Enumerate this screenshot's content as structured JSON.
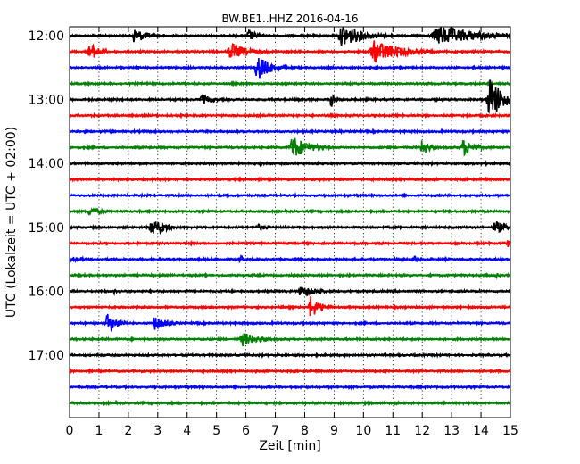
{
  "chart_data": {
    "type": "line",
    "title": "BW.BE1..HHZ 2016-04-16",
    "xlabel": "Zeit  [min]",
    "ylabel": "UTC (Lokalzeit = UTC + 02:00)",
    "xlim": [
      0,
      15
    ],
    "x_ticks": [
      "0",
      "1",
      "2",
      "3",
      "4",
      "5",
      "6",
      "7",
      "8",
      "9",
      "10",
      "11",
      "12",
      "13",
      "14",
      "15"
    ],
    "grid_x": true,
    "grid_y": false,
    "line_colors": [
      "#000000",
      "#ff0000",
      "#0000ff",
      "#008000"
    ],
    "row_start_minutes_utc": 720,
    "row_duration_minutes": 15,
    "y_tick_labels": [
      "12:00",
      "13:00",
      "14:00",
      "15:00",
      "16:00",
      "17:00"
    ],
    "y_tick_row_index": [
      0,
      4,
      8,
      12,
      16,
      20
    ],
    "rows": [
      {
        "start": "12:00",
        "events": [
          [
            2.2,
            9,
            1.2
          ],
          [
            6.1,
            7,
            0.8
          ],
          [
            9.3,
            13,
            2.0
          ],
          [
            12.6,
            11,
            4.0
          ]
        ]
      },
      {
        "start": "12:15",
        "events": [
          [
            0.7,
            11,
            0.8
          ],
          [
            5.5,
            10,
            1.6
          ],
          [
            10.4,
            13,
            2.5
          ]
        ]
      },
      {
        "start": "12:30",
        "events": [
          [
            6.4,
            15,
            1.2
          ]
        ]
      },
      {
        "start": "12:45",
        "events": []
      },
      {
        "start": "13:00",
        "events": [
          [
            4.5,
            6,
            1.0
          ],
          [
            8.9,
            10,
            0.3
          ],
          [
            14.3,
            26,
            1.2
          ]
        ]
      },
      {
        "start": "13:15",
        "events": []
      },
      {
        "start": "13:30",
        "events": []
      },
      {
        "start": "13:45",
        "events": [
          [
            7.6,
            13,
            1.6
          ],
          [
            12.0,
            9,
            0.8
          ],
          [
            13.4,
            10,
            1.0
          ]
        ]
      },
      {
        "start": "14:00",
        "events": [
          [
            6.5,
            3,
            0.4
          ]
        ]
      },
      {
        "start": "14:15",
        "events": []
      },
      {
        "start": "14:30",
        "events": []
      },
      {
        "start": "14:45",
        "events": [
          [
            0.7,
            5,
            1.2
          ]
        ]
      },
      {
        "start": "15:00",
        "events": [
          [
            2.8,
            11,
            1.2
          ],
          [
            6.4,
            4,
            1.2
          ],
          [
            14.5,
            7,
            1.5
          ]
        ]
      },
      {
        "start": "15:15",
        "events": [
          [
            14.9,
            5,
            0.5
          ]
        ]
      },
      {
        "start": "15:30",
        "events": [
          [
            0.1,
            3,
            1.5
          ],
          [
            5.8,
            5,
            0.4
          ],
          [
            11.7,
            4,
            1.0
          ]
        ]
      },
      {
        "start": "15:45",
        "events": [
          [
            14.5,
            3,
            0.3
          ]
        ]
      },
      {
        "start": "16:00",
        "events": [
          [
            1.5,
            4,
            0.2
          ],
          [
            7.9,
            7,
            1.5
          ]
        ]
      },
      {
        "start": "16:15",
        "events": [
          [
            8.2,
            13,
            0.9
          ]
        ]
      },
      {
        "start": "16:30",
        "events": [
          [
            1.3,
            11,
            1.0
          ],
          [
            2.9,
            8,
            1.2
          ]
        ]
      },
      {
        "start": "16:45",
        "events": [
          [
            5.9,
            8,
            1.6
          ]
        ]
      },
      {
        "start": "17:00",
        "events": []
      },
      {
        "start": "17:15",
        "events": []
      },
      {
        "start": "17:30",
        "events": []
      },
      {
        "start": "17:45",
        "events": []
      }
    ]
  }
}
